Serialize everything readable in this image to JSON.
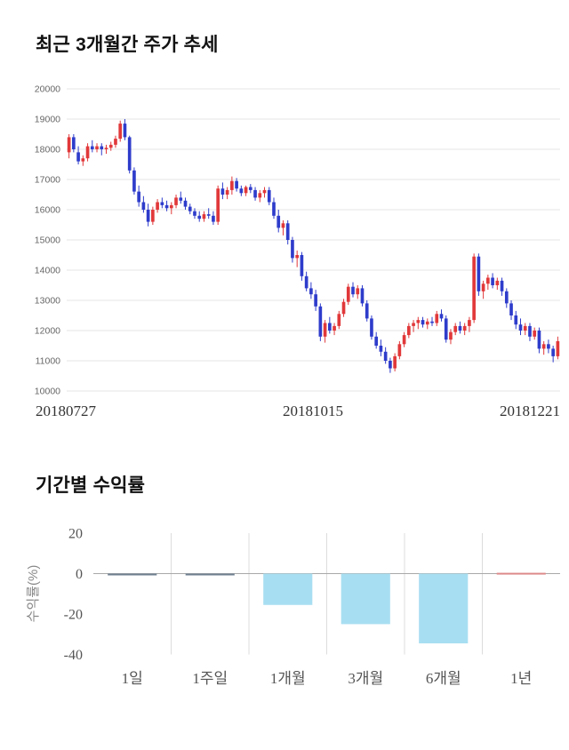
{
  "page": {
    "background": "#ffffff"
  },
  "price_chart": {
    "title": "최근 3개월간 주가 추세"
  },
  "returns_chart": {
    "title": "기간별 수익률"
  },
  "chart_data": [
    {
      "type": "candlestick",
      "title": "최근 3개월간 주가 추세",
      "ylim": [
        10000,
        20000
      ],
      "yticks": [
        10000,
        11000,
        12000,
        13000,
        14000,
        15000,
        16000,
        17000,
        18000,
        19000,
        20000
      ],
      "xtick_labels": [
        "20180727",
        "20181015",
        "20181221"
      ],
      "grid": "horizontal",
      "up_color": "#e1383a",
      "down_color": "#2e3ccb",
      "grid_color": "#e6e6e6",
      "tick_color": "#666666",
      "xlabel_color": "#333333",
      "candle_format": "open,high,low,close",
      "candles": [
        [
          17900,
          18500,
          17700,
          18400
        ],
        [
          18400,
          18500,
          17900,
          18000
        ],
        [
          17900,
          18100,
          17500,
          17600
        ],
        [
          17600,
          17800,
          17450,
          17700
        ],
        [
          17700,
          18200,
          17600,
          18100
        ],
        [
          18100,
          18300,
          17900,
          18000
        ],
        [
          18000,
          18200,
          17900,
          18100
        ],
        [
          18100,
          18200,
          17800,
          18000
        ],
        [
          18000,
          18150,
          17850,
          18050
        ],
        [
          18050,
          18250,
          17950,
          18150
        ],
        [
          18150,
          18450,
          18050,
          18350
        ],
        [
          18350,
          18950,
          18250,
          18850
        ],
        [
          18850,
          19000,
          18300,
          18400
        ],
        [
          18400,
          18450,
          17200,
          17300
        ],
        [
          17300,
          17400,
          16500,
          16600
        ],
        [
          16600,
          16800,
          16100,
          16250
        ],
        [
          16250,
          16450,
          15900,
          16000
        ],
        [
          16000,
          16200,
          15450,
          15600
        ],
        [
          15600,
          16100,
          15500,
          16000
        ],
        [
          16000,
          16350,
          15900,
          16250
        ],
        [
          16250,
          16400,
          16050,
          16150
        ],
        [
          16150,
          16300,
          15950,
          16050
        ],
        [
          16050,
          16250,
          15850,
          16150
        ],
        [
          16150,
          16500,
          16050,
          16400
        ],
        [
          16400,
          16600,
          16200,
          16300
        ],
        [
          16300,
          16400,
          16000,
          16100
        ],
        [
          16100,
          16200,
          15850,
          15950
        ],
        [
          15950,
          16050,
          15700,
          15800
        ],
        [
          15800,
          15950,
          15600,
          15700
        ],
        [
          15700,
          15950,
          15600,
          15850
        ],
        [
          15850,
          16050,
          15700,
          15800
        ],
        [
          15800,
          15950,
          15500,
          15600
        ],
        [
          15600,
          16800,
          15500,
          16700
        ],
        [
          16700,
          16900,
          16350,
          16500
        ],
        [
          16500,
          16750,
          16350,
          16650
        ],
        [
          16650,
          17100,
          16500,
          16950
        ],
        [
          16950,
          17050,
          16600,
          16700
        ],
        [
          16700,
          16800,
          16450,
          16550
        ],
        [
          16550,
          16800,
          16450,
          16750
        ],
        [
          16750,
          16850,
          16550,
          16650
        ],
        [
          16650,
          16750,
          16300,
          16400
        ],
        [
          16400,
          16650,
          16250,
          16550
        ],
        [
          16550,
          16750,
          16400,
          16650
        ],
        [
          16650,
          16750,
          16150,
          16250
        ],
        [
          16250,
          16400,
          15700,
          15800
        ],
        [
          15800,
          16000,
          15250,
          15400
        ],
        [
          15400,
          15650,
          15150,
          15550
        ],
        [
          15550,
          15650,
          14850,
          15000
        ],
        [
          15000,
          15100,
          14250,
          14400
        ],
        [
          14400,
          14650,
          14100,
          14500
        ],
        [
          14500,
          14600,
          13650,
          13800
        ],
        [
          13800,
          13950,
          13300,
          13400
        ],
        [
          13400,
          13600,
          13050,
          13200
        ],
        [
          13200,
          13350,
          12650,
          12800
        ],
        [
          12800,
          12900,
          11650,
          11800
        ],
        [
          11800,
          12350,
          11600,
          12250
        ],
        [
          12250,
          12450,
          11900,
          12000
        ],
        [
          12000,
          12250,
          11850,
          12150
        ],
        [
          12150,
          12650,
          12050,
          12550
        ],
        [
          12550,
          13050,
          12450,
          12950
        ],
        [
          12950,
          13550,
          12850,
          13450
        ],
        [
          13450,
          13600,
          13100,
          13200
        ],
        [
          13200,
          13500,
          13050,
          13400
        ],
        [
          13400,
          13500,
          12800,
          12900
        ],
        [
          12900,
          13000,
          12300,
          12400
        ],
        [
          12400,
          12500,
          11700,
          11800
        ],
        [
          11800,
          11950,
          11400,
          11500
        ],
        [
          11500,
          11700,
          11150,
          11300
        ],
        [
          11300,
          11450,
          10900,
          11000
        ],
        [
          11000,
          11100,
          10600,
          10750
        ],
        [
          10750,
          11250,
          10650,
          11150
        ],
        [
          11150,
          11650,
          11050,
          11550
        ],
        [
          11550,
          11950,
          11450,
          11850
        ],
        [
          11850,
          12250,
          11750,
          12150
        ],
        [
          12150,
          12350,
          11950,
          12250
        ],
        [
          12250,
          12450,
          12050,
          12350
        ],
        [
          12350,
          12450,
          12100,
          12200
        ],
        [
          12200,
          12400,
          12050,
          12300
        ],
        [
          12300,
          12450,
          12150,
          12250
        ],
        [
          12250,
          12650,
          12150,
          12550
        ],
        [
          12550,
          12700,
          12300,
          12400
        ],
        [
          12400,
          12500,
          11600,
          11700
        ],
        [
          11700,
          12050,
          11550,
          11950
        ],
        [
          11950,
          12250,
          11850,
          12150
        ],
        [
          12150,
          12300,
          11900,
          12000
        ],
        [
          12000,
          12250,
          11850,
          12150
        ],
        [
          12150,
          12450,
          11950,
          12350
        ],
        [
          12350,
          14550,
          12250,
          14450
        ],
        [
          14450,
          14550,
          13150,
          13300
        ],
        [
          13300,
          13650,
          13050,
          13550
        ],
        [
          13550,
          13850,
          13350,
          13750
        ],
        [
          13750,
          13900,
          13400,
          13500
        ],
        [
          13500,
          13750,
          13350,
          13650
        ],
        [
          13650,
          13750,
          13150,
          13300
        ],
        [
          13300,
          13400,
          12750,
          12900
        ],
        [
          12900,
          13000,
          12350,
          12500
        ],
        [
          12500,
          12650,
          12050,
          12200
        ],
        [
          12200,
          12400,
          11850,
          12000
        ],
        [
          12000,
          12250,
          11850,
          12150
        ],
        [
          12150,
          12250,
          11650,
          11800
        ],
        [
          11800,
          12100,
          11700,
          12000
        ],
        [
          12000,
          12100,
          11250,
          11400
        ],
        [
          11400,
          11650,
          11200,
          11550
        ],
        [
          11550,
          11700,
          11250,
          11400
        ],
        [
          11400,
          11500,
          10950,
          11150
        ],
        [
          11150,
          11800,
          11050,
          11650
        ]
      ]
    },
    {
      "type": "bar",
      "title": "기간별 수익률",
      "categories": [
        "1일",
        "1주일",
        "1개월",
        "3개월",
        "6개월",
        "1년"
      ],
      "values": [
        -0.2,
        -0.3,
        -15.5,
        -25.0,
        -34.5,
        0.4
      ],
      "bar_colors": [
        "#708090",
        "#708090",
        "#a8def1",
        "#a8def1",
        "#a8def1",
        "#dd8a8a"
      ],
      "ylabel": "수익률(%)",
      "ylim": [
        -40,
        20
      ],
      "yticks": [
        20,
        0,
        -20,
        -40
      ],
      "zero_line_color": "#a8a8a8",
      "separator_color": "#dcdcdc",
      "tick_color": "#555555",
      "ylabel_color": "#888888",
      "grid": "vertical-category-separators",
      "legend": "none"
    }
  ]
}
